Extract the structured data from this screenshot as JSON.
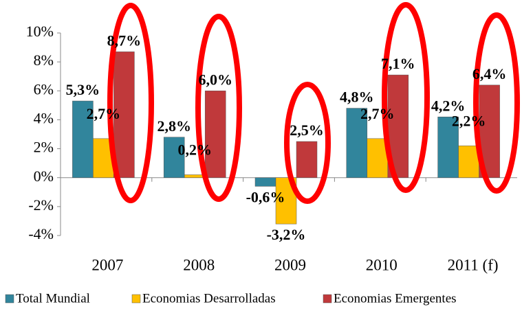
{
  "chart_data": {
    "type": "bar",
    "categories": [
      "2007",
      "2008",
      "2009",
      "2010",
      "2011 (f)"
    ],
    "series": [
      {
        "name": "Total Mundial",
        "color": "#31859c",
        "values": [
          5.3,
          2.8,
          -0.6,
          4.8,
          4.2
        ],
        "value_labels": [
          "5,3%",
          "2,8%",
          "-0,6%",
          "4,8%",
          "4,2%"
        ]
      },
      {
        "name": "Economias Desarrolladas",
        "color": "#ffc000",
        "values": [
          2.7,
          0.2,
          -3.2,
          2.7,
          2.2
        ],
        "value_labels": [
          "2,7%",
          "0,2%",
          "-3,2%",
          "2,7%",
          "2,2%"
        ]
      },
      {
        "name": "Economias Emergentes",
        "color": "#c0393b",
        "values": [
          8.7,
          6.0,
          2.5,
          7.1,
          6.4
        ],
        "value_labels": [
          "8,7%",
          "6,0%",
          "2,5%",
          "7,1%",
          "6,4%"
        ]
      }
    ],
    "ylim": [
      -4,
      10
    ],
    "yticks": [
      {
        "value": -4,
        "label": "-4%"
      },
      {
        "value": -2,
        "label": "-2%"
      },
      {
        "value": 0,
        "label": "0%"
      },
      {
        "value": 2,
        "label": "2%"
      },
      {
        "value": 4,
        "label": "4%"
      },
      {
        "value": 6,
        "label": "6%"
      },
      {
        "value": 8,
        "label": "8%"
      },
      {
        "value": 10,
        "label": "10%"
      }
    ],
    "legend": "bottom"
  }
}
